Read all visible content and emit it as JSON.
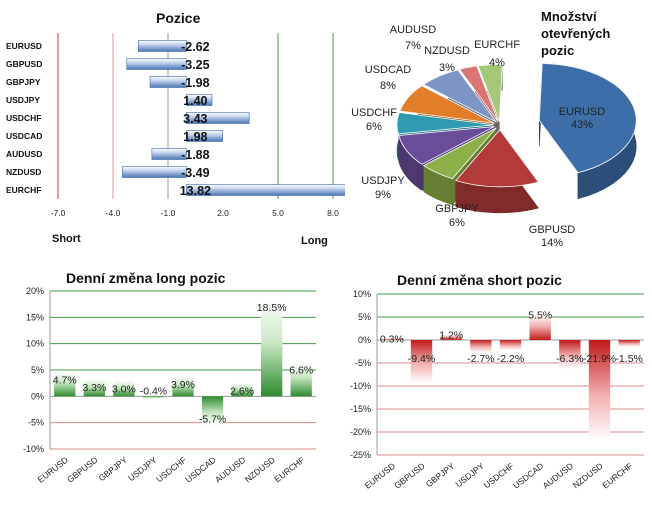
{
  "colors": {
    "bar_blue": "#4a74b5",
    "long_green": "#2d8b2d",
    "short_red": "#c21a1a",
    "axis_red": "#d23a3a",
    "axis_green": "#4a9a4a"
  },
  "chart_data": [
    {
      "id": "positions",
      "type": "bar",
      "orientation": "horizontal",
      "title": "Pozice",
      "categories": [
        "EURUSD",
        "GBPUSD",
        "GBPJPY",
        "USDJPY",
        "USDCHF",
        "USDCAD",
        "AUDUSD",
        "NZDUSD",
        "EURCHF"
      ],
      "values": [
        -2.62,
        -3.25,
        -1.98,
        1.4,
        3.43,
        1.98,
        -1.88,
        -3.49,
        13.82
      ],
      "value_labels": [
        "-2.62",
        "-3.25",
        "-1.98",
        "1.40",
        "3.43",
        "1.98",
        "-1.88",
        "-3.49",
        "13.82"
      ],
      "xlim": [
        -7.0,
        8.0
      ],
      "xticks": [
        -7.0,
        -4.0,
        -1.0,
        2.0,
        5.0,
        8.0
      ],
      "xtick_labels": [
        "-7.0",
        "-4.0",
        "-1.0",
        "2.0",
        "5.0",
        "8.0"
      ],
      "left_label": "Short",
      "right_label": "Long"
    },
    {
      "id": "open-positions",
      "type": "pie",
      "title_lines": [
        "Množství",
        "otevřených",
        "pozic"
      ],
      "labels": [
        "EURUSD",
        "GBPUSD",
        "GBPJPY",
        "USDJPY",
        "USDCHF",
        "USDCAD",
        "AUDUSD",
        "NZDUSD",
        "EURCHF"
      ],
      "values": [
        43,
        14,
        6,
        9,
        6,
        8,
        7,
        3,
        4
      ],
      "value_labels": [
        "43%",
        "14%",
        "6%",
        "9%",
        "6%",
        "8%",
        "7%",
        "3%",
        "4%"
      ],
      "colors": [
        "#3d6ea8",
        "#b33a3a",
        "#8db04a",
        "#6a4d9a",
        "#2f9ab0",
        "#e27d2a",
        "#7d96c6",
        "#d87575",
        "#a5c77a"
      ]
    },
    {
      "id": "daily-long",
      "type": "bar",
      "title": "Denní změna long pozic",
      "categories": [
        "EURUSD",
        "GBPUSD",
        "GBPJPY",
        "USDJPY",
        "USDCHF",
        "USDCAD",
        "AUDUSD",
        "NZDUSD",
        "EURCHF"
      ],
      "values": [
        4.7,
        3.3,
        3.0,
        -0.4,
        3.9,
        -5.7,
        2.6,
        18.5,
        6.6
      ],
      "value_labels": [
        "4.7%",
        "3.3%",
        "3.0%",
        "-0.4%",
        "3.9%",
        "-5.7%",
        "2.6%",
        "18.5%",
        "6.6%"
      ],
      "ylim": [
        -10,
        20
      ],
      "yticks": [
        -10,
        -5,
        0,
        5,
        10,
        15,
        20
      ],
      "ytick_labels": [
        "-10%",
        "-5%",
        "0%",
        "5%",
        "10%",
        "15%",
        "20%"
      ]
    },
    {
      "id": "daily-short",
      "type": "bar",
      "title": "Denní změna short pozic",
      "categories": [
        "EURUSD",
        "GBPUSD",
        "GBPJPY",
        "USDJPY",
        "USDCHF",
        "USDCAD",
        "AUDUSD",
        "NZDUSD",
        "EURCHF"
      ],
      "values": [
        0.3,
        -9.4,
        1.2,
        -2.7,
        -2.2,
        5.5,
        -6.3,
        -21.9,
        -1.5
      ],
      "value_labels": [
        "0.3%",
        "-9.4%",
        "1.2%",
        "-2.7%",
        "-2.2%",
        "5.5%",
        "-6.3%",
        "-21.9%",
        "-1.5%"
      ],
      "ylim": [
        -25,
        10
      ],
      "yticks": [
        -25,
        -20,
        -15,
        -10,
        -5,
        0,
        5,
        10
      ],
      "ytick_labels": [
        "-25%",
        "-20%",
        "-15%",
        "-10%",
        "-5%",
        "0%",
        "5%",
        "10%"
      ]
    }
  ]
}
